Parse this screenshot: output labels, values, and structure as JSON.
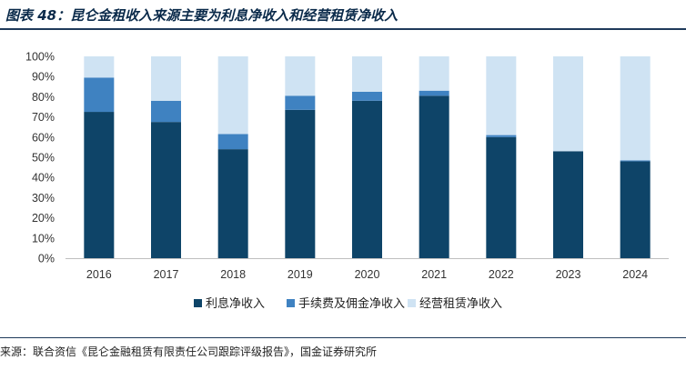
{
  "header": {
    "title": "图表 48：昆仑金租收入来源主要为利息净收入和经营租赁净收入"
  },
  "footer": {
    "source": "来源：联合资信《昆仑金融租赁有限责任公司跟踪评级报告》，国金证券研究所"
  },
  "chart_data": {
    "type": "bar",
    "stacked": true,
    "categories": [
      "2016",
      "2017",
      "2018",
      "2019",
      "2020",
      "2021",
      "2022",
      "2023",
      "2024"
    ],
    "series": [
      {
        "name": "利息净收入",
        "color": "#0e4468",
        "values": [
          72.5,
          67.5,
          54,
          73.5,
          78,
          80.5,
          60,
          53,
          48
        ]
      },
      {
        "name": "手续费及佣金净收入",
        "color": "#3f82c1",
        "values": [
          17,
          10.5,
          7.5,
          7,
          4.5,
          2.5,
          1,
          0,
          0.5
        ]
      },
      {
        "name": "经营租赁净收入",
        "color": "#cfe3f3",
        "values": [
          10.5,
          22,
          38.5,
          19.5,
          17.5,
          17,
          39,
          47,
          51.5
        ]
      }
    ],
    "y_ticks": [
      "0%",
      "10%",
      "20%",
      "30%",
      "40%",
      "50%",
      "60%",
      "70%",
      "80%",
      "90%",
      "100%"
    ],
    "ylim": [
      0,
      100
    ],
    "ylabel": "",
    "xlabel": "",
    "legend_position": "bottom"
  }
}
